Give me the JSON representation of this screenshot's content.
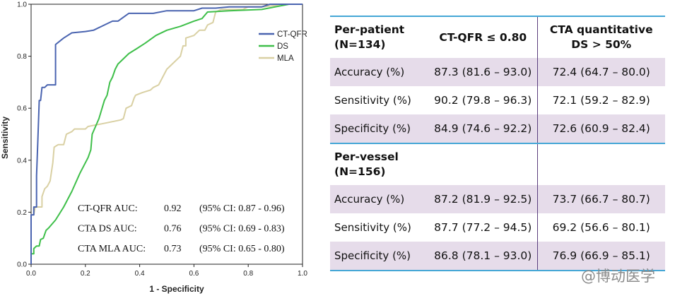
{
  "chart_data": {
    "type": "line",
    "xlabel": "1 - Specificity",
    "ylabel": "Sensitivity",
    "xlim": [
      0,
      1
    ],
    "ylim": [
      0,
      1
    ],
    "xticks": [
      "0.0",
      "0.2",
      "0.4",
      "0.6",
      "0.8",
      "1.0"
    ],
    "yticks": [
      "0.0",
      "0.2",
      "0.4",
      "0.6",
      "0.8",
      "1.0"
    ],
    "grid": false,
    "legend_position": "top-right",
    "series": [
      {
        "name": "CT-QFR",
        "color": "#4a64b0",
        "points": [
          [
            0,
            0
          ],
          [
            0,
            0.19
          ],
          [
            0.01,
            0.19
          ],
          [
            0.01,
            0.22
          ],
          [
            0.02,
            0.22
          ],
          [
            0.02,
            0.34
          ],
          [
            0.025,
            0.48
          ],
          [
            0.03,
            0.63
          ],
          [
            0.035,
            0.63
          ],
          [
            0.04,
            0.68
          ],
          [
            0.05,
            0.68
          ],
          [
            0.06,
            0.69
          ],
          [
            0.09,
            0.69
          ],
          [
            0.09,
            0.845
          ],
          [
            0.12,
            0.87
          ],
          [
            0.15,
            0.89
          ],
          [
            0.2,
            0.895
          ],
          [
            0.23,
            0.9
          ],
          [
            0.27,
            0.92
          ],
          [
            0.3,
            0.935
          ],
          [
            0.32,
            0.935
          ],
          [
            0.36,
            0.965
          ],
          [
            0.45,
            0.965
          ],
          [
            0.5,
            0.975
          ],
          [
            0.6,
            0.975
          ],
          [
            0.63,
            0.985
          ],
          [
            0.68,
            0.985
          ],
          [
            0.73,
            0.99
          ],
          [
            0.85,
            0.99
          ],
          [
            0.88,
            1.0
          ],
          [
            1.0,
            1.0
          ]
        ]
      },
      {
        "name": "DS",
        "color": "#3fbf4a",
        "points": [
          [
            0,
            0
          ],
          [
            0,
            0.04
          ],
          [
            0.01,
            0.04
          ],
          [
            0.01,
            0.06
          ],
          [
            0.02,
            0.07
          ],
          [
            0.03,
            0.07
          ],
          [
            0.035,
            0.095
          ],
          [
            0.045,
            0.1
          ],
          [
            0.055,
            0.13
          ],
          [
            0.065,
            0.14
          ],
          [
            0.09,
            0.17
          ],
          [
            0.12,
            0.22
          ],
          [
            0.15,
            0.28
          ],
          [
            0.18,
            0.35
          ],
          [
            0.21,
            0.41
          ],
          [
            0.22,
            0.44
          ],
          [
            0.225,
            0.5
          ],
          [
            0.25,
            0.56
          ],
          [
            0.27,
            0.63
          ],
          [
            0.28,
            0.65
          ],
          [
            0.29,
            0.7
          ],
          [
            0.3,
            0.72
          ],
          [
            0.31,
            0.75
          ],
          [
            0.32,
            0.77
          ],
          [
            0.36,
            0.81
          ],
          [
            0.39,
            0.83
          ],
          [
            0.42,
            0.85
          ],
          [
            0.46,
            0.88
          ],
          [
            0.5,
            0.9
          ],
          [
            0.55,
            0.915
          ],
          [
            0.6,
            0.935
          ],
          [
            0.63,
            0.945
          ],
          [
            0.65,
            0.97
          ],
          [
            0.73,
            0.975
          ],
          [
            0.85,
            0.98
          ],
          [
            0.9,
            0.99
          ],
          [
            0.95,
            1.0
          ],
          [
            1.0,
            1.0
          ]
        ]
      },
      {
        "name": "MLA",
        "color": "#d9d0a3",
        "points": [
          [
            0,
            0
          ],
          [
            0,
            0.19
          ],
          [
            0.01,
            0.19
          ],
          [
            0.015,
            0.22
          ],
          [
            0.04,
            0.22
          ],
          [
            0.04,
            0.26
          ],
          [
            0.05,
            0.29
          ],
          [
            0.06,
            0.3
          ],
          [
            0.07,
            0.32
          ],
          [
            0.08,
            0.39
          ],
          [
            0.085,
            0.45
          ],
          [
            0.1,
            0.46
          ],
          [
            0.12,
            0.46
          ],
          [
            0.13,
            0.5
          ],
          [
            0.15,
            0.51
          ],
          [
            0.16,
            0.52
          ],
          [
            0.2,
            0.52
          ],
          [
            0.21,
            0.53
          ],
          [
            0.26,
            0.54
          ],
          [
            0.33,
            0.555
          ],
          [
            0.34,
            0.56
          ],
          [
            0.35,
            0.6
          ],
          [
            0.37,
            0.61
          ],
          [
            0.38,
            0.64
          ],
          [
            0.385,
            0.65
          ],
          [
            0.41,
            0.66
          ],
          [
            0.44,
            0.67
          ],
          [
            0.45,
            0.68
          ],
          [
            0.47,
            0.69
          ],
          [
            0.5,
            0.75
          ],
          [
            0.53,
            0.78
          ],
          [
            0.55,
            0.8
          ],
          [
            0.56,
            0.84
          ],
          [
            0.57,
            0.84
          ],
          [
            0.57,
            0.87
          ],
          [
            0.6,
            0.88
          ],
          [
            0.62,
            0.9
          ],
          [
            0.64,
            0.9
          ],
          [
            0.65,
            0.92
          ],
          [
            0.67,
            0.93
          ],
          [
            0.68,
            0.97
          ],
          [
            0.7,
            0.98
          ],
          [
            0.78,
            0.98
          ],
          [
            0.8,
            0.99
          ],
          [
            0.85,
            0.99
          ],
          [
            0.9,
            0.995
          ],
          [
            0.92,
            1.0
          ],
          [
            1.0,
            1.0
          ]
        ]
      }
    ],
    "annotations": [
      {
        "label": "CT-QFR AUC:",
        "auc": "0.92",
        "ci": "(95% CI: 0.87 - 0.96)"
      },
      {
        "label": "CTA DS AUC:",
        "auc": "0.76",
        "ci": "(95% CI: 0.69 - 0.83)"
      },
      {
        "label": "CTA MLA AUC:",
        "auc": "0.73",
        "ci": "(95% CI: 0.65 - 0.80)"
      }
    ]
  },
  "table": {
    "col_ctqfr": "CT-QFR ≤ 0.80",
    "col_cta": "CTA quantitative DS > 50%",
    "groups": [
      {
        "title": "Per-patient (N=134)",
        "rows": [
          {
            "metric": "Accuracy (%)",
            "ctqfr": "87.3 (81.6 – 93.0)",
            "cta": "72.4 (64.7 – 80.0)"
          },
          {
            "metric": "Sensitivity (%)",
            "ctqfr": "90.2 (79.8 – 96.3)",
            "cta": "72.1 (59.2 – 82.9)"
          },
          {
            "metric": "Specificity (%)",
            "ctqfr": "84.9 (74.6 – 92.2)",
            "cta": "72.6 (60.9 – 82.4)"
          }
        ]
      },
      {
        "title": "Per-vessel (N=156)",
        "rows": [
          {
            "metric": "Accuracy (%)",
            "ctqfr": "87.2 (81.9 – 92.5)",
            "cta": "73.7 (66.7 – 80.7)"
          },
          {
            "metric": "Sensitivity (%)",
            "ctqfr": "87.7 (77.2 – 94.5)",
            "cta": "69.2 (56.6 – 80.1)"
          },
          {
            "metric": "Specificity (%)",
            "ctqfr": "86.8 (78.1 – 93.0)",
            "cta": "76.9 (66.9 – 85.1)"
          }
        ]
      }
    ]
  },
  "watermark": "@博动医学"
}
